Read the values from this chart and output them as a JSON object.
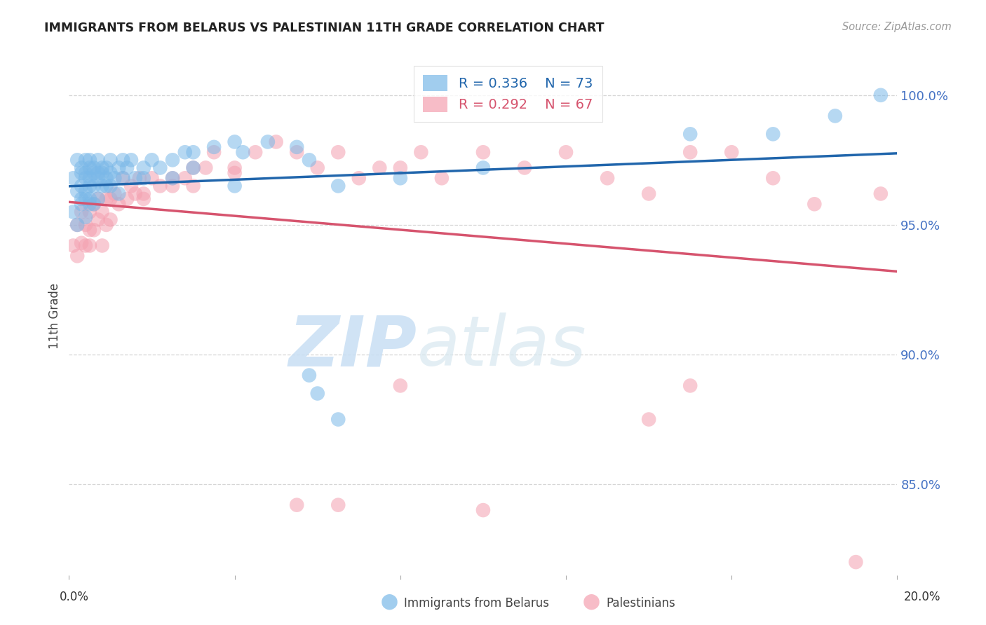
{
  "title": "IMMIGRANTS FROM BELARUS VS PALESTINIAN 11TH GRADE CORRELATION CHART",
  "source": "Source: ZipAtlas.com",
  "ylabel": "11th Grade",
  "ytick_labels": [
    "100.0%",
    "95.0%",
    "90.0%",
    "85.0%"
  ],
  "ytick_values": [
    1.0,
    0.95,
    0.9,
    0.85
  ],
  "xlim": [
    0.0,
    0.2
  ],
  "ylim": [
    0.815,
    1.015
  ],
  "legend_r_belarus": "R = 0.336",
  "legend_n_belarus": "N = 73",
  "legend_r_palestinians": "R = 0.292",
  "legend_n_palestinians": "N = 67",
  "color_belarus": "#7ab8e8",
  "color_palestinians": "#f4a0b0",
  "line_color_belarus": "#2166ac",
  "line_color_palestinians": "#d6546e",
  "watermark_zip": "ZIP",
  "watermark_atlas": "atlas",
  "background_color": "#ffffff",
  "grid_color": "#cccccc",
  "belarus_x": [
    0.001,
    0.001,
    0.002,
    0.002,
    0.002,
    0.003,
    0.003,
    0.003,
    0.003,
    0.003,
    0.004,
    0.004,
    0.004,
    0.004,
    0.004,
    0.004,
    0.005,
    0.005,
    0.005,
    0.005,
    0.005,
    0.005,
    0.006,
    0.006,
    0.006,
    0.006,
    0.007,
    0.007,
    0.007,
    0.007,
    0.008,
    0.008,
    0.008,
    0.009,
    0.009,
    0.009,
    0.01,
    0.01,
    0.011,
    0.012,
    0.013,
    0.013,
    0.014,
    0.015,
    0.016,
    0.018,
    0.02,
    0.022,
    0.025,
    0.028,
    0.03,
    0.035,
    0.04,
    0.042,
    0.048,
    0.055,
    0.058,
    0.06,
    0.065,
    0.01,
    0.012,
    0.018,
    0.025,
    0.03,
    0.04,
    0.058,
    0.065,
    0.08,
    0.1,
    0.15,
    0.17,
    0.185,
    0.196
  ],
  "belarus_y": [
    0.968,
    0.955,
    0.975,
    0.963,
    0.95,
    0.972,
    0.965,
    0.958,
    0.97,
    0.96,
    0.975,
    0.968,
    0.96,
    0.953,
    0.97,
    0.963,
    0.972,
    0.965,
    0.958,
    0.975,
    0.968,
    0.96,
    0.972,
    0.965,
    0.958,
    0.97,
    0.975,
    0.968,
    0.96,
    0.97,
    0.972,
    0.965,
    0.97,
    0.968,
    0.972,
    0.965,
    0.97,
    0.975,
    0.968,
    0.972,
    0.975,
    0.968,
    0.972,
    0.975,
    0.968,
    0.972,
    0.975,
    0.972,
    0.975,
    0.978,
    0.978,
    0.98,
    0.982,
    0.978,
    0.982,
    0.98,
    0.892,
    0.885,
    0.875,
    0.965,
    0.962,
    0.968,
    0.968,
    0.972,
    0.965,
    0.975,
    0.965,
    0.968,
    0.972,
    0.985,
    0.985,
    0.992,
    1.0
  ],
  "palestinians_x": [
    0.001,
    0.002,
    0.002,
    0.003,
    0.003,
    0.004,
    0.004,
    0.005,
    0.005,
    0.005,
    0.006,
    0.006,
    0.007,
    0.007,
    0.008,
    0.008,
    0.009,
    0.009,
    0.01,
    0.01,
    0.011,
    0.012,
    0.013,
    0.014,
    0.015,
    0.016,
    0.017,
    0.018,
    0.02,
    0.022,
    0.025,
    0.028,
    0.03,
    0.033,
    0.035,
    0.04,
    0.045,
    0.05,
    0.055,
    0.06,
    0.065,
    0.07,
    0.075,
    0.08,
    0.085,
    0.09,
    0.1,
    0.11,
    0.12,
    0.13,
    0.14,
    0.15,
    0.16,
    0.17,
    0.18,
    0.19,
    0.196,
    0.14,
    0.15,
    0.018,
    0.025,
    0.03,
    0.04,
    0.055,
    0.065,
    0.08,
    0.1
  ],
  "palestinians_y": [
    0.942,
    0.95,
    0.938,
    0.955,
    0.943,
    0.95,
    0.942,
    0.955,
    0.948,
    0.942,
    0.948,
    0.958,
    0.952,
    0.96,
    0.955,
    0.942,
    0.96,
    0.95,
    0.952,
    0.96,
    0.962,
    0.958,
    0.968,
    0.96,
    0.965,
    0.962,
    0.968,
    0.962,
    0.968,
    0.965,
    0.968,
    0.968,
    0.972,
    0.972,
    0.978,
    0.972,
    0.978,
    0.982,
    0.978,
    0.972,
    0.978,
    0.968,
    0.972,
    0.972,
    0.978,
    0.968,
    0.978,
    0.972,
    0.978,
    0.968,
    0.962,
    0.978,
    0.978,
    0.968,
    0.958,
    0.82,
    0.962,
    0.875,
    0.888,
    0.96,
    0.965,
    0.965,
    0.97,
    0.842,
    0.842,
    0.888,
    0.84
  ]
}
